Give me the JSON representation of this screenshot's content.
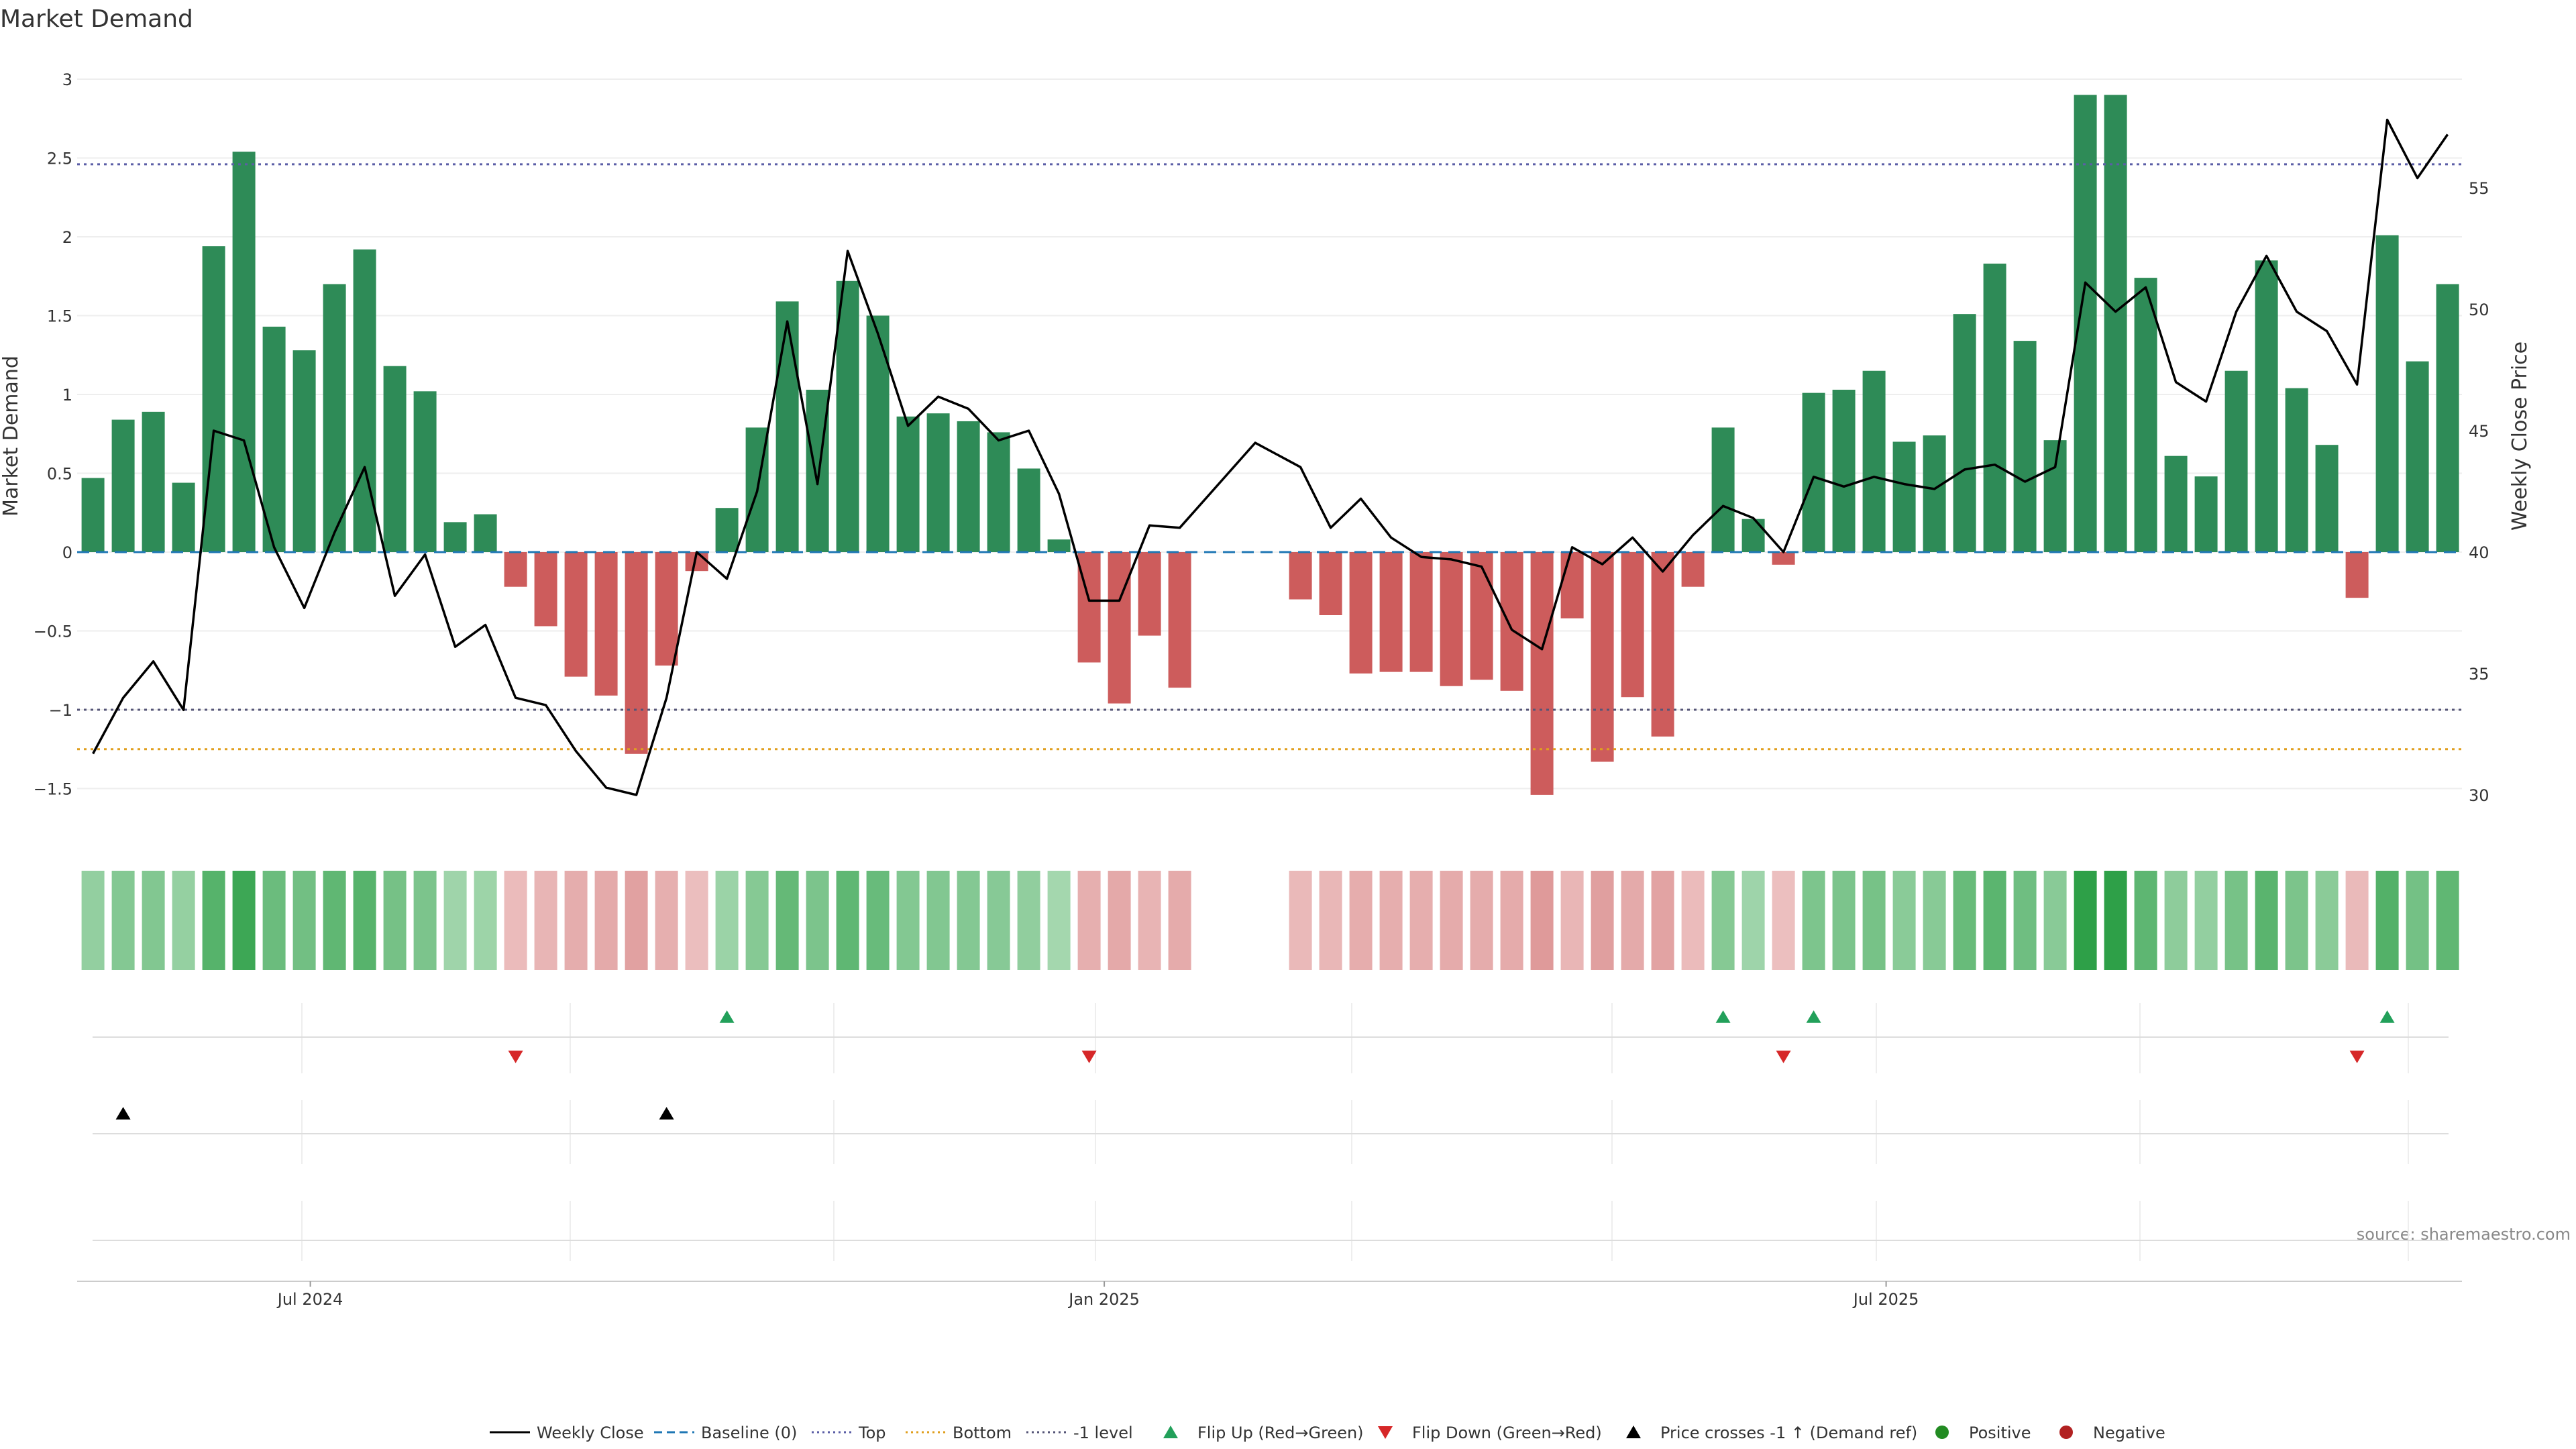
{
  "source": "source: sharemaestro.com",
  "chart_data": {
    "type": "bar",
    "title": "Market Demand",
    "ylabel": "Market Demand",
    "y2label": "Weekly Close Price",
    "ylim": [
      -1.75,
      3.1
    ],
    "y2lim": [
      27.3,
      58.6
    ],
    "yticks": [
      -1.5,
      -1,
      -0.5,
      0,
      0.5,
      1,
      1.5,
      2,
      2.5,
      3
    ],
    "yticklabels": [
      "−1.5",
      "−1",
      "−0.5",
      "0",
      "0.5",
      "1",
      "1.5",
      "2",
      "2.5",
      "3"
    ],
    "y2ticks": [
      30,
      35,
      40,
      45,
      50,
      55
    ],
    "y2ticklabels": [
      "30",
      "35",
      "40",
      "45",
      "50",
      "55"
    ],
    "xticks": [
      {
        "label": "Jul 2024",
        "index": 7.2
      },
      {
        "label": "Jan 2025",
        "index": 33.5
      },
      {
        "label": "Jul 2025",
        "index": 59.4
      }
    ],
    "reference_lines": [
      {
        "name": "Baseline (0)",
        "axis": "left",
        "value": 0,
        "color": "#1f77b4",
        "dash": "18,10"
      },
      {
        "name": "Top",
        "axis": "left",
        "value": 2.46,
        "color": "#5b5ea6",
        "dash": "4,6"
      },
      {
        "name": "Bottom",
        "axis": "left",
        "value": -1.25,
        "color": "#e09f1e",
        "dash": "4,6"
      },
      {
        "name": "-1 level",
        "axis": "left",
        "value": -1,
        "color": "#555577",
        "dash": "4,6"
      }
    ],
    "demand": [
      0.47,
      0.84,
      0.89,
      0.44,
      1.94,
      2.54,
      1.43,
      1.28,
      1.7,
      1.92,
      1.18,
      1.02,
      0.19,
      0.24,
      -0.22,
      -0.47,
      -0.79,
      -0.91,
      -1.28,
      -0.72,
      -0.12,
      0.28,
      0.79,
      1.59,
      1.03,
      1.72,
      1.5,
      0.86,
      0.88,
      0.83,
      0.76,
      0.53,
      0.08,
      -0.7,
      -0.96,
      -0.53,
      -0.86,
      null,
      null,
      null,
      -0.3,
      -0.4,
      -0.77,
      -0.76,
      -0.76,
      -0.85,
      -0.81,
      -0.88,
      -1.54,
      -0.42,
      -1.33,
      -0.92,
      -1.17,
      -0.22,
      0.79,
      0.21,
      -0.08,
      1.01,
      1.03,
      1.15,
      0.7,
      0.74,
      1.51,
      1.83,
      1.34,
      0.71,
      2.9,
      2.9,
      1.74,
      0.61,
      0.48,
      1.15,
      1.85,
      1.04,
      0.68,
      -0.29,
      2.01,
      1.21,
      1.7
    ],
    "weekly_close": [
      31.7,
      34.0,
      35.5,
      33.5,
      45.0,
      44.6,
      40.2,
      37.7,
      40.8,
      43.5,
      38.2,
      39.9,
      36.1,
      37.0,
      34.0,
      33.7,
      31.8,
      30.3,
      30.0,
      34.0,
      40.0,
      38.9,
      42.5,
      49.5,
      42.8,
      52.4,
      49.0,
      45.2,
      46.4,
      45.9,
      44.6,
      45.0,
      42.4,
      38.0,
      38.0,
      41.1,
      41.0,
      null,
      null,
      null,
      43.5,
      41.0,
      42.2,
      40.6,
      39.8,
      39.7,
      39.4,
      36.8,
      36.0,
      40.2,
      39.5,
      40.6,
      39.2,
      40.7,
      41.9,
      41.4,
      40.0,
      43.1,
      42.7,
      43.1,
      42.8,
      42.6,
      43.4,
      43.6,
      42.9,
      43.5,
      51.1,
      49.9,
      50.9,
      47.0,
      46.2,
      49.9,
      52.2,
      49.9,
      49.1,
      46.9,
      57.8,
      55.4,
      57.2
    ],
    "weekly_close_gap_points": [
      {
        "index": 38.5,
        "value": 44.5
      }
    ],
    "flip_up_indices": [
      21,
      54,
      57,
      76
    ],
    "flip_down_indices": [
      14,
      33,
      56,
      75
    ],
    "price_cross_indices": [
      1,
      19
    ],
    "strength_colors": {
      "positive_strong": "#2e8b57",
      "negative_strong": "#cd5c5c"
    },
    "legend": [
      {
        "label": "Weekly Close",
        "kind": "line",
        "color": "#000000",
        "dash": ""
      },
      {
        "label": "Baseline (0)",
        "kind": "line",
        "color": "#1f77b4",
        "dash": "12,7"
      },
      {
        "label": "Top",
        "kind": "line",
        "color": "#5b5ea6",
        "dash": "3,5"
      },
      {
        "label": "Bottom",
        "kind": "line",
        "color": "#e09f1e",
        "dash": "3,5"
      },
      {
        "label": "-1 level",
        "kind": "line",
        "color": "#555577",
        "dash": "3,5"
      },
      {
        "label": "Flip Up (Red→Green)",
        "kind": "tri-up",
        "color": "#22a05a"
      },
      {
        "label": "Flip Down (Green→Red)",
        "kind": "tri-down",
        "color": "#d62728"
      },
      {
        "label": "Price crosses -1 ↑ (Demand ref)",
        "kind": "tri-up",
        "color": "#000000"
      },
      {
        "label": "Positive",
        "kind": "dot",
        "color": "#228b22"
      },
      {
        "label": "Negative",
        "kind": "dot",
        "color": "#b22222"
      }
    ]
  }
}
